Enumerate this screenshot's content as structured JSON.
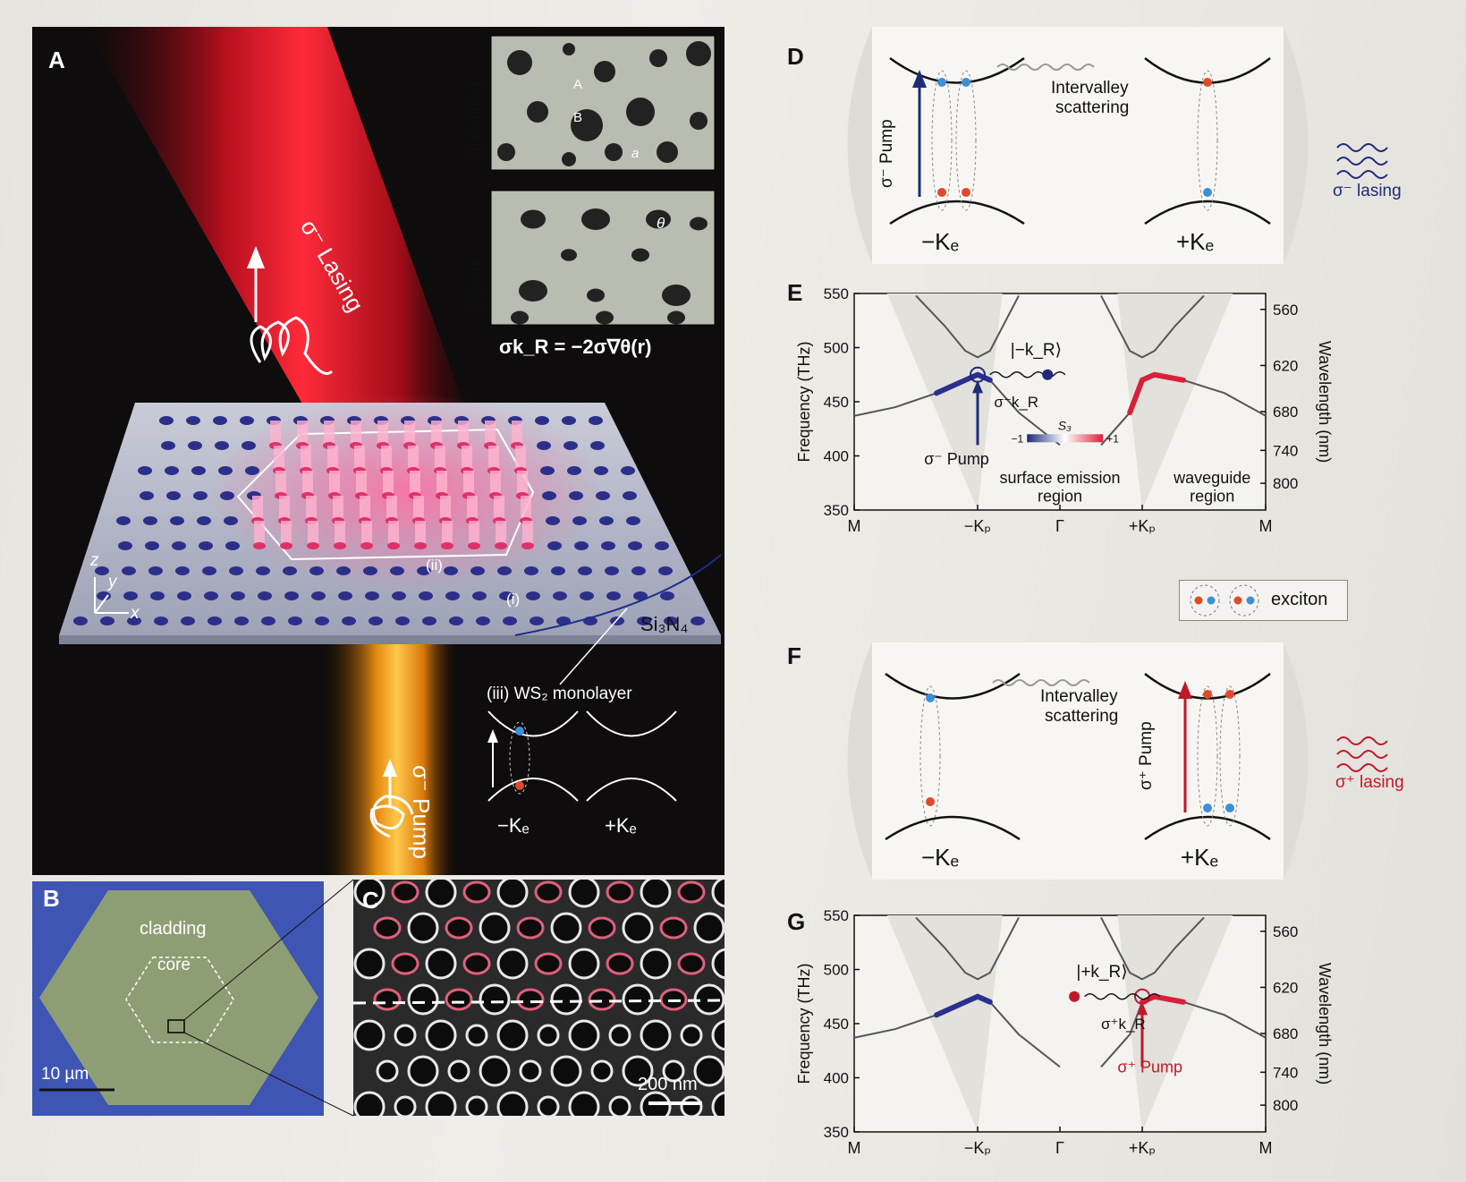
{
  "panelA": {
    "label": "A",
    "inset_i": "(i) cladding",
    "inset_ii": "(ii) core",
    "site_A": "A",
    "site_B": "B",
    "lattice_a": "a",
    "theta": "θ",
    "equation": "σk_R = −2σ∇θ(r)",
    "lasing": "σ⁻ Lasing",
    "pump": "σ⁻ Pump",
    "region_ii": "(ii)",
    "region_i": "(i)",
    "substrate": "Si₃N₄",
    "monolayer": "(iii) WS₂ monolayer",
    "minusKe": "−Kₑ",
    "plusKe": "+Kₑ",
    "axes": {
      "z": "z",
      "y": "y",
      "x": "x"
    }
  },
  "panelB": {
    "label": "B",
    "cladding": "cladding",
    "core": "core",
    "scale": "10 µm"
  },
  "panelC": {
    "label": "C",
    "scale": "200 nm"
  },
  "panelD": {
    "label": "D",
    "pump": "σ⁻ Pump",
    "scattering_1": "Intervalley",
    "scattering_2": "scattering",
    "lasing": "σ⁻ lasing",
    "minusKe": "−Kₑ",
    "plusKe": "+Kₑ"
  },
  "panelF": {
    "label": "F",
    "pump": "σ⁺ Pump",
    "scattering_1": "Intervalley",
    "scattering_2": "scattering",
    "lasing": "σ⁺ lasing",
    "minusKe": "−Kₑ",
    "plusKe": "+Kₑ"
  },
  "legend": {
    "exciton": "exciton"
  },
  "colors": {
    "sigma_minus": "#1f2a7a",
    "sigma_plus": "#c0182a",
    "spin_up": "#e04a2a",
    "spin_down": "#3d8fd8"
  },
  "chart_data": [
    {
      "type": "line",
      "panel": "E",
      "ylabel": "Frequency (THz)",
      "ylabel_right": "Wavelength (nm)",
      "ylim": [
        350,
        550
      ],
      "yticks": [
        "350",
        "400",
        "450",
        "500",
        "550"
      ],
      "yticks_right": [
        "560",
        "620",
        "680",
        "740",
        "800"
      ],
      "yticks_right_values": [
        535.3,
        483.5,
        440.9,
        405.1,
        374.7
      ],
      "xticks": [
        "M",
        "−Kₚ",
        "Γ",
        "+Kₚ",
        "M"
      ],
      "colorbar": {
        "label": "S₃",
        "min": "−1",
        "max": "+1"
      },
      "annotations": {
        "pump": "σ⁻ Pump",
        "ket": "|−k_R⟩",
        "mode": "σ⁻k_R",
        "region_left_1": "surface emission",
        "region_left_2": "region",
        "region_right_1": "waveguide",
        "region_right_2": "region"
      },
      "series": [
        {
          "x": [
            0,
            0.1,
            0.2,
            0.27,
            0.3,
            0.33,
            0.4,
            0.5
          ],
          "values": [
            437,
            445,
            458,
            470,
            475,
            470,
            440,
            410
          ]
        },
        {
          "x": [
            0.15,
            0.22,
            0.27,
            0.3,
            0.33,
            0.4
          ],
          "values": [
            548,
            520,
            497,
            491,
            497,
            548
          ]
        },
        {
          "x": [
            0.6,
            0.67,
            0.7,
            0.73,
            0.8,
            0.9,
            1.0
          ],
          "values": [
            410,
            440,
            470,
            475,
            470,
            458,
            437
          ]
        },
        {
          "x": [
            0.6,
            0.67,
            0.7,
            0.73,
            0.78,
            0.85
          ],
          "values": [
            548,
            497,
            491,
            497,
            520,
            548
          ]
        }
      ]
    },
    {
      "type": "line",
      "panel": "G",
      "ylabel": "Frequency (THz)",
      "ylabel_right": "Wavelength (nm)",
      "ylim": [
        350,
        550
      ],
      "yticks": [
        "350",
        "400",
        "450",
        "500",
        "550"
      ],
      "yticks_right": [
        "560",
        "620",
        "680",
        "740",
        "800"
      ],
      "yticks_right_values": [
        535.3,
        483.5,
        440.9,
        405.1,
        374.7
      ],
      "xticks": [
        "M",
        "−Kₚ",
        "Γ",
        "+Kₚ",
        "M"
      ],
      "annotations": {
        "pump": "σ⁺ Pump",
        "ket": "|+k_R⟩",
        "mode": "σ⁺k_R"
      },
      "series": [
        {
          "x": [
            0,
            0.1,
            0.2,
            0.27,
            0.3,
            0.33,
            0.4,
            0.5
          ],
          "values": [
            437,
            445,
            458,
            470,
            475,
            470,
            440,
            410
          ]
        },
        {
          "x": [
            0.15,
            0.22,
            0.27,
            0.3,
            0.33,
            0.4
          ],
          "values": [
            548,
            520,
            497,
            491,
            497,
            548
          ]
        },
        {
          "x": [
            0.6,
            0.67,
            0.7,
            0.73,
            0.8,
            0.9,
            1.0
          ],
          "values": [
            410,
            440,
            470,
            475,
            470,
            458,
            437
          ]
        },
        {
          "x": [
            0.6,
            0.67,
            0.7,
            0.73,
            0.78,
            0.85
          ],
          "values": [
            548,
            497,
            491,
            497,
            520,
            548
          ]
        }
      ]
    }
  ]
}
